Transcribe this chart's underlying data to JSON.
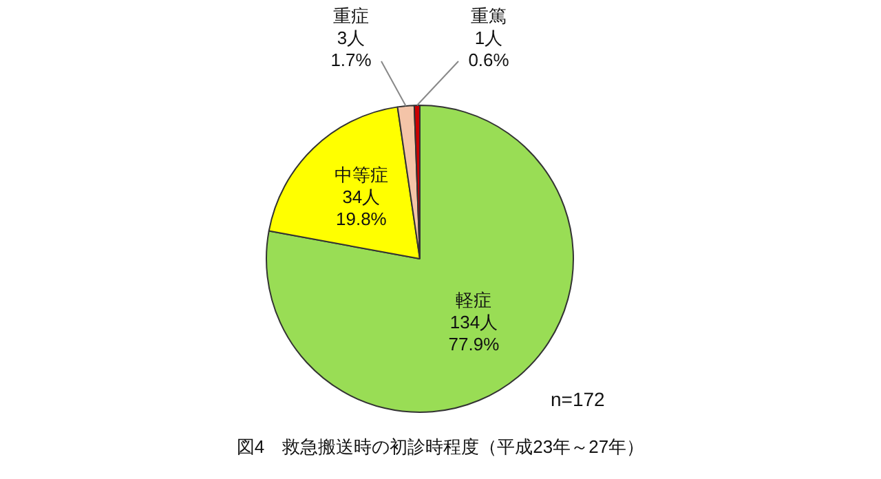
{
  "chart_data": {
    "type": "pie",
    "title": "図4　救急搬送時の初診時程度（平成23年～27年）",
    "categories": [
      "軽症",
      "中等症",
      "重症",
      "重篤"
    ],
    "values": [
      134,
      34,
      3,
      1
    ],
    "value_labels": [
      "134人\n77.9%",
      "34人\n19.8%",
      "3人\n1.7%",
      "1人\n0.6%"
    ],
    "colors": [
      "#99dd55",
      "#ffff00",
      "#f4c4a8",
      "#cc0000"
    ],
    "legend": false,
    "annotations": [
      "n=172"
    ]
  }
}
